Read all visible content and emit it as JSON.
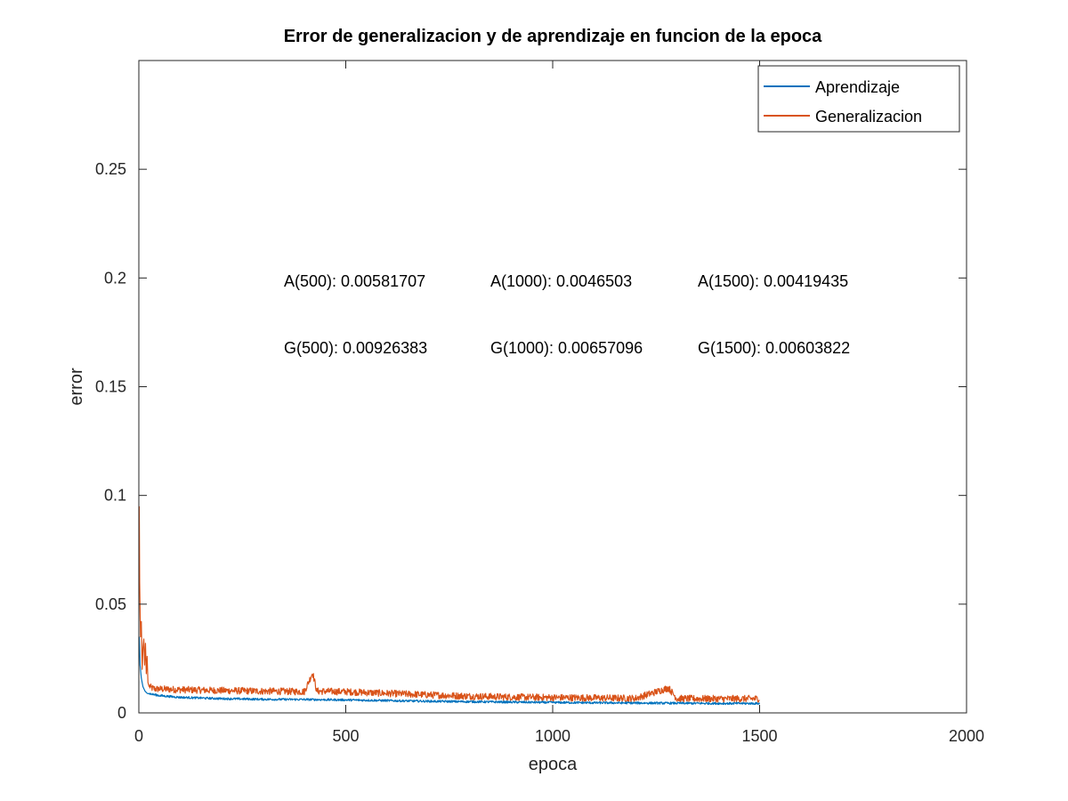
{
  "chart_data": {
    "type": "line",
    "title": "Error de generalizacion y de aprendizaje en funcion de la epoca",
    "xlabel": "epoca",
    "ylabel": "error",
    "xlim": [
      0,
      2000
    ],
    "ylim": [
      0,
      0.3
    ],
    "xticks": [
      "0",
      "500",
      "1000",
      "1500",
      "2000"
    ],
    "yticks": [
      "0",
      "0.05",
      "0.1",
      "0.15",
      "0.2",
      "0.25"
    ],
    "grid": false,
    "legend_position": "top-right",
    "series": [
      {
        "name": "Aprendizaje",
        "color": "#0072BD",
        "x": [
          1,
          3,
          6,
          10,
          15,
          20,
          30,
          50,
          100,
          200,
          300,
          400,
          500,
          600,
          700,
          800,
          900,
          1000,
          1100,
          1200,
          1300,
          1400,
          1500
        ],
        "y": [
          0.035,
          0.022,
          0.016,
          0.012,
          0.01,
          0.009,
          0.0085,
          0.0078,
          0.007,
          0.0064,
          0.0061,
          0.006,
          0.00581707,
          0.0055,
          0.0052,
          0.005,
          0.0048,
          0.0046503,
          0.0045,
          0.0044,
          0.0043,
          0.0042,
          0.00419435
        ]
      },
      {
        "name": "Generalizacion",
        "color": "#D95319",
        "x": [
          1,
          2,
          4,
          6,
          8,
          10,
          12,
          14,
          16,
          18,
          20,
          22,
          25,
          30,
          40,
          50,
          100,
          200,
          300,
          400,
          420,
          430,
          500,
          600,
          700,
          800,
          900,
          1000,
          1100,
          1200,
          1280,
          1300,
          1400,
          1500
        ],
        "y": [
          0.095,
          0.06,
          0.035,
          0.042,
          0.02,
          0.03,
          0.034,
          0.022,
          0.032,
          0.018,
          0.026,
          0.014,
          0.012,
          0.011,
          0.0105,
          0.0105,
          0.0102,
          0.0098,
          0.0095,
          0.0093,
          0.018,
          0.0095,
          0.00926383,
          0.0085,
          0.0078,
          0.0072,
          0.0068,
          0.00657096,
          0.0064,
          0.0062,
          0.011,
          0.0061,
          0.006,
          0.00603822
        ]
      }
    ],
    "annotations": [
      "A(500): 0.00581707",
      "A(1000): 0.0046503",
      "A(1500): 0.00419435",
      "G(500): 0.00926383",
      "G(1000): 0.00657096",
      "G(1500): 0.00603822"
    ]
  }
}
